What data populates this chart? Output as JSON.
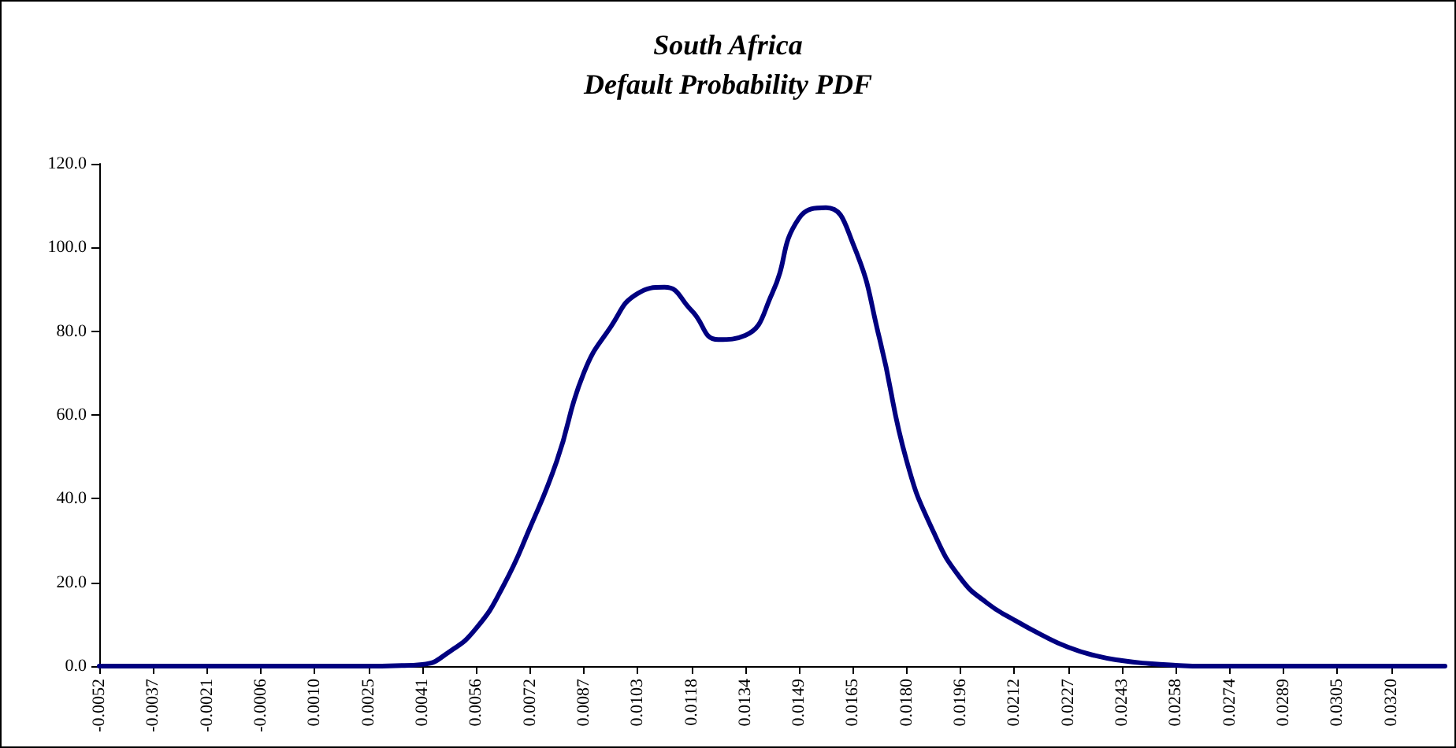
{
  "chart_data": {
    "type": "line",
    "title": "South Africa\nDefault Probability PDF",
    "categories": [
      "-0.0052",
      null,
      "-0.0037",
      null,
      "-0.0021",
      null,
      "-0.0006",
      null,
      "0.0010",
      null,
      "0.0025",
      null,
      "0.0041",
      null,
      "0.0056",
      null,
      "0.0072",
      null,
      "0.0087",
      null,
      "0.0103",
      null,
      "0.0118",
      null,
      "0.0134",
      null,
      "0.0149",
      null,
      "0.0165",
      null,
      "0.0180",
      null,
      "0.0196",
      null,
      "0.0212",
      null,
      "0.0227",
      null,
      "0.0243",
      null,
      "0.0258",
      null,
      "0.0274",
      null,
      "0.0289",
      null,
      "0.0305",
      null,
      "0.0320",
      null,
      null
    ],
    "series": [
      {
        "color": "#000080",
        "values": [
          0,
          0,
          0,
          0,
          0,
          0,
          0,
          0,
          0,
          0,
          0,
          0.1,
          0.4,
          3.4,
          9,
          19,
          33,
          49,
          70,
          81,
          89,
          90.5,
          85,
          78,
          79,
          89,
          107,
          109.5,
          101,
          78,
          49,
          32,
          21,
          15,
          11,
          7.5,
          4.5,
          2.5,
          1.3,
          0.6,
          0.2,
          0,
          0,
          0,
          0,
          0,
          0,
          0,
          0,
          0,
          0
        ]
      }
    ],
    "ylim": [
      0,
      120
    ],
    "yticks": [
      {
        "value": 0,
        "label": "0.0"
      },
      {
        "value": 20,
        "label": "20.0"
      },
      {
        "value": 40,
        "label": "40.0"
      },
      {
        "value": 60,
        "label": "60.0"
      },
      {
        "value": 80,
        "label": "80.0"
      },
      {
        "value": 100,
        "label": "100.0"
      },
      {
        "value": 120,
        "label": "120.0"
      }
    ],
    "grid": false,
    "marker": "none",
    "line_style": "solid"
  }
}
